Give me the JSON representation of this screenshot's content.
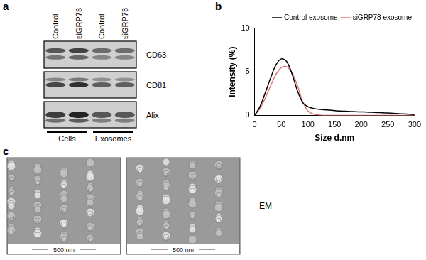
{
  "panel_a": {
    "letter": "a",
    "lanes": [
      "Control",
      "siGRP78",
      "Control",
      "siGRP78"
    ],
    "rows": [
      "CD63",
      "CD81",
      "Alix"
    ],
    "groups": [
      "Cells",
      "Exosomes"
    ]
  },
  "chart_data": {
    "letter": "b",
    "type": "line",
    "x_label": "Size d.nm",
    "y_label": "Intensity (%)",
    "x": [
      0,
      10,
      20,
      30,
      40,
      50,
      60,
      70,
      80,
      90,
      100,
      110,
      120,
      130,
      140,
      150,
      160,
      170,
      180,
      190,
      200,
      210,
      220,
      230,
      240,
      250,
      260,
      270,
      280,
      290,
      300
    ],
    "series": [
      {
        "name": "Control exosome",
        "color": "#000000",
        "values": [
          0,
          1.0,
          2.6,
          4.3,
          5.8,
          6.5,
          6.2,
          4.8,
          2.9,
          1.5,
          1.0,
          0.8,
          0.7,
          0.65,
          0.6,
          0.55,
          0.5,
          0.48,
          0.45,
          0.42,
          0.4,
          0.38,
          0.35,
          0.32,
          0.3,
          0.27,
          0.24,
          0.2,
          0.17,
          0.14,
          0.1
        ]
      },
      {
        "name": "siGRP78 exosome",
        "color": "#e07878",
        "values": [
          0,
          0.8,
          2.0,
          3.4,
          4.7,
          5.5,
          5.6,
          4.9,
          3.5,
          1.6,
          0.5,
          0.15,
          0.05,
          0,
          0,
          0,
          0,
          0,
          0,
          0,
          0,
          0,
          0,
          0,
          0,
          0,
          0,
          0,
          0,
          0,
          0
        ]
      }
    ],
    "xlim": [
      0,
      300
    ],
    "xticks": [
      0,
      50,
      100,
      150,
      200,
      250,
      300
    ],
    "ylim": [
      0,
      10
    ],
    "yticks": [
      0,
      5,
      10
    ],
    "grid": false,
    "legend": "upper right"
  },
  "panel_c": {
    "letter": "c",
    "images": [
      {
        "scale_bar": "500 nm"
      },
      {
        "scale_bar": "500 nm"
      }
    ],
    "label": "EM"
  }
}
